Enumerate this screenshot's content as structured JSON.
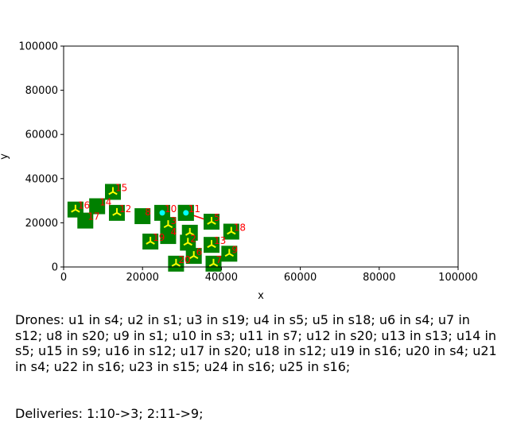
{
  "chart_data": {
    "type": "scatter",
    "xlabel": "x",
    "ylabel": "y",
    "xlim": [
      0,
      100000
    ],
    "ylim": [
      0,
      100000
    ],
    "x_ticks": [
      "0",
      "20000",
      "40000",
      "60000",
      "80000",
      "100000"
    ],
    "y_ticks": [
      "0",
      "20000",
      "40000",
      "60000",
      "80000",
      "100000"
    ],
    "grid": false,
    "colors": {
      "station": "#008000",
      "drone": "#ffff00",
      "label": "#ff0000",
      "route": "#ff0000",
      "marker": "#00ffff"
    },
    "stations": [
      {
        "label": "1",
        "x": 31000,
        "y": 24500
      },
      {
        "label": "2",
        "x": 31500,
        "y": 11000
      },
      {
        "label": "3",
        "x": 26500,
        "y": 19000
      },
      {
        "label": "4",
        "x": 26500,
        "y": 14000
      },
      {
        "label": "5",
        "x": 37500,
        "y": 20500
      },
      {
        "label": "6",
        "x": 33000,
        "y": 5000
      },
      {
        "label": "7",
        "x": 38000,
        "y": 1500
      },
      {
        "label": "8",
        "x": 20000,
        "y": 23000
      },
      {
        "label": "9",
        "x": 42000,
        "y": 6000
      },
      {
        "label": "10",
        "x": 25000,
        "y": 24500
      },
      {
        "label": "11",
        "x": 31000,
        "y": 24500
      },
      {
        "label": "12",
        "x": 13500,
        "y": 24500
      },
      {
        "label": "13",
        "x": 37500,
        "y": 10000
      },
      {
        "label": "14",
        "x": 8500,
        "y": 27500
      },
      {
        "label": "15",
        "x": 12500,
        "y": 34000
      },
      {
        "label": "16",
        "x": 3000,
        "y": 26000
      },
      {
        "label": "17",
        "x": 5500,
        "y": 21000
      },
      {
        "label": "18",
        "x": 42500,
        "y": 16000
      },
      {
        "label": "19",
        "x": 22000,
        "y": 11500
      },
      {
        "label": "20",
        "x": 28500,
        "y": 1500
      },
      {
        "label": "",
        "x": 32000,
        "y": 15500
      }
    ],
    "drones": [
      {
        "x": 31500,
        "y": 11000
      },
      {
        "x": 26500,
        "y": 19000
      },
      {
        "x": 37500,
        "y": 20500
      },
      {
        "x": 33000,
        "y": 5000
      },
      {
        "x": 38000,
        "y": 1500
      },
      {
        "x": 42000,
        "y": 6000
      },
      {
        "x": 13500,
        "y": 24500
      },
      {
        "x": 37500,
        "y": 10000
      },
      {
        "x": 12500,
        "y": 34000
      },
      {
        "x": 3000,
        "y": 26000
      },
      {
        "x": 42500,
        "y": 16000
      },
      {
        "x": 22000,
        "y": 11500
      },
      {
        "x": 28500,
        "y": 1500
      },
      {
        "x": 32000,
        "y": 15500
      }
    ],
    "routes": [
      {
        "from": [
          31000,
          24500
        ],
        "to": [
          37500,
          20500
        ]
      },
      {
        "from": [
          25000,
          24500
        ],
        "to": [
          26500,
          19000
        ]
      }
    ],
    "markers": [
      {
        "x": 25000,
        "y": 24500
      },
      {
        "x": 31000,
        "y": 24500
      }
    ]
  },
  "caption": {
    "drones": "Drones: u1 in s4; u2 in s1; u3 in s19; u4 in s5; u5 in s18; u6 in s4; u7 in s12; u8 in s20; u9 in s1; u10 in s3; u11 in s7; u12 in s20; u13 in s13; u14 in s5; u15 in s9; u16 in s12; u17 in s20; u18 in s12; u19 in s16; u20 in s4; u21 in s4; u22 in s16; u23 in s15; u24 in s16; u25 in s16;",
    "deliveries": "Deliveries: 1:10->3; 2:11->9;"
  }
}
